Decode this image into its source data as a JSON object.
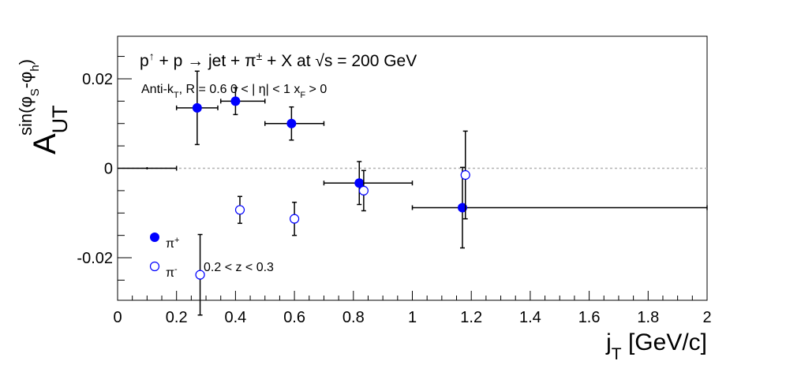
{
  "chart_data": {
    "type": "scatter",
    "title": {
      "reaction_html": "p<tspan baseline-shift=\"super\" font-size=\"14\">↑</tspan> + p → jet + π<tspan baseline-shift=\"super\" font-size=\"14\">±</tspan> + X at  √s = 200 GeV",
      "cuts_html": "Anti-k<tspan baseline-shift=\"sub\" font-size=\"11\">T</tspan>, R = 0.6   0 &lt; | η| &lt; 1   x<tspan baseline-shift=\"sub\" font-size=\"11\">F</tspan> &gt; 0"
    },
    "annotation": "0.2 < z < 0.3",
    "xlabel": {
      "main": "j",
      "sub": "T",
      "rest": " [GeV/c]"
    },
    "ylabel": {
      "main": "A",
      "sub": "UT",
      "sup": "sin(φ",
      "sup_sub1": "S",
      "sup_mid": "-φ",
      "sup_sub2": "h",
      "sup_end": ")"
    },
    "xlim": [
      0,
      2
    ],
    "ylim": [
      -0.0295,
      0.0295
    ],
    "xticks": [
      0,
      0.2,
      0.4,
      0.6,
      0.8,
      1,
      1.2,
      1.4,
      1.6,
      1.8,
      2
    ],
    "xtick_labels": [
      "0",
      "0.2",
      "0.4",
      "0.6",
      "0.8",
      "1",
      "1.2",
      "1.4",
      "1.6",
      "1.8",
      "2"
    ],
    "yticks": [
      -0.02,
      0,
      0.02
    ],
    "ytick_labels": [
      "-0.02",
      "0",
      "0.02"
    ],
    "grid": false,
    "reference_line": 0,
    "legend_position": "bottom-left",
    "series": [
      {
        "name": "π+",
        "legend_base": "π",
        "legend_sup": "+",
        "marker": "filled-circle",
        "color": "#0000ff",
        "points": [
          {
            "x": 0.27,
            "xerr": [
              0.07,
              0.07
            ],
            "y": 0.0135,
            "yerr": 0.0082
          },
          {
            "x": 0.4,
            "xerr": [
              0.05,
              0.1
            ],
            "y": 0.015,
            "yerr": 0.003
          },
          {
            "x": 0.59,
            "xerr": [
              0.09,
              0.11
            ],
            "y": 0.01,
            "yerr": 0.0037
          },
          {
            "x": 0.82,
            "xerr": [
              0.12,
              0.18
            ],
            "y": -0.0033,
            "yerr": 0.0048
          },
          {
            "x": 1.17,
            "xerr": [
              0.17,
              0.83
            ],
            "y": -0.0088,
            "yerr": 0.009
          }
        ]
      },
      {
        "name": "π−",
        "legend_base": "π",
        "legend_sup": "-",
        "marker": "open-circle",
        "color": "#0000ff",
        "points": [
          {
            "x": 0.28,
            "y": -0.0238,
            "yerr": 0.009
          },
          {
            "x": 0.415,
            "y": -0.0093,
            "yerr": 0.003
          },
          {
            "x": 0.6,
            "y": -0.0113,
            "yerr": 0.0037
          },
          {
            "x": 0.835,
            "y": -0.005,
            "yerr": 0.0045
          },
          {
            "x": 1.18,
            "y": -0.0015,
            "yerr": 0.0098
          }
        ]
      }
    ],
    "extra_segments": [
      {
        "x0": 0,
        "x1": 0.2,
        "y": 0,
        "color": "#000000"
      }
    ]
  }
}
